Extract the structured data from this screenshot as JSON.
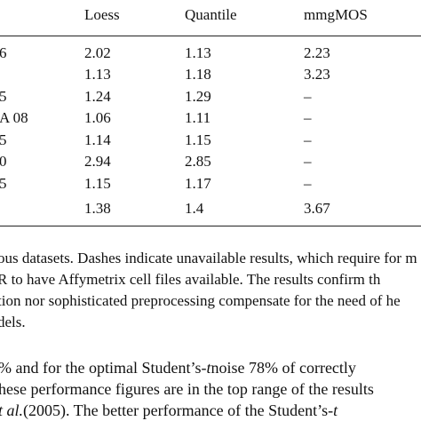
{
  "table": {
    "headers": [
      "Loess",
      "Quantile",
      "mmgMOS"
    ],
    "rows": [
      {
        "label": "6",
        "cells": [
          2.02,
          1.13,
          2.23
        ]
      },
      {
        "cells": [
          1.13,
          1.18,
          3.23
        ]
      },
      {
        "label": "5",
        "cells": [
          1.24,
          1.29,
          "–"
        ]
      },
      {
        "label": "A 08",
        "cells": [
          1.06,
          1.11,
          "–"
        ]
      },
      {
        "label": "5",
        "cells": [
          1.14,
          1.15,
          "–"
        ]
      },
      {
        "label": "0",
        "cells": [
          2.94,
          2.85,
          "–"
        ]
      },
      {
        "label": "5",
        "cells": [
          1.15,
          1.17,
          "–"
        ]
      },
      {
        "cells": [
          1.38,
          1.4,
          3.67
        ]
      }
    ]
  },
  "caption": [
    "ous datasets. Dashes indicate unavailable results, which require for m",
    "R to have Affymetrix cell files available. The results confirm th",
    "tion nor sophisticated preprocessing compensate for the need of he",
    "dels."
  ],
  "paragraph": [
    [
      {
        "text": "% and for the optimal Student’s-"
      },
      {
        "text": "t",
        "italic": true
      },
      {
        "text": " noise 78% of correctly"
      }
    ],
    [
      {
        "text": "hese performance figures are in the top range of the results"
      }
    ],
    [
      {
        "text": "t al.",
        "italic": true
      },
      {
        "text": " (2005). The better performance of the Student’s-"
      },
      {
        "text": "t",
        "italic": true
      }
    ]
  ]
}
